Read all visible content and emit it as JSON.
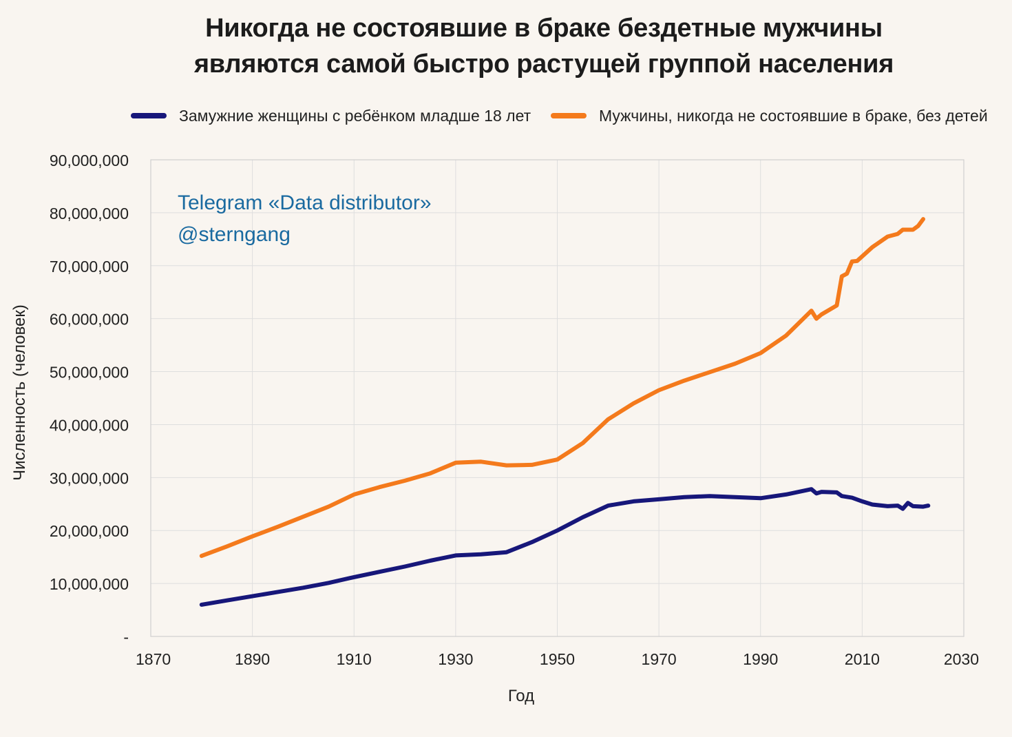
{
  "title_lines": [
    "Никогда не состоявшие в браке бездетные мужчины",
    "являются самой быстро растущей группой населения"
  ],
  "watermark": {
    "line1": "Telegram «Data distributor»",
    "line2": "@sterngang"
  },
  "colors": {
    "background": "#f9f5f0",
    "grid": "#dedede",
    "series_women": "#17177a",
    "series_men": "#f47a1c",
    "watermark": "#1a6aa0"
  },
  "chart_data": {
    "type": "line",
    "xlabel": "Год",
    "ylabel": "Численность (человек)",
    "xlim": [
      1870,
      2030
    ],
    "ylim": [
      0,
      90000000
    ],
    "x_ticks": [
      1870,
      1890,
      1910,
      1930,
      1950,
      1970,
      1990,
      2010,
      2030
    ],
    "y_ticks": [
      {
        "value": 0,
        "label": "-"
      },
      {
        "value": 10000000,
        "label": "10,000,000"
      },
      {
        "value": 20000000,
        "label": "20,000,000"
      },
      {
        "value": 30000000,
        "label": "30,000,000"
      },
      {
        "value": 40000000,
        "label": "40,000,000"
      },
      {
        "value": 50000000,
        "label": "50,000,000"
      },
      {
        "value": 60000000,
        "label": "60,000,000"
      },
      {
        "value": 70000000,
        "label": "70,000,000"
      },
      {
        "value": 80000000,
        "label": "80,000,000"
      },
      {
        "value": 90000000,
        "label": "90,000,000"
      }
    ],
    "grid": true,
    "legend_position": "top",
    "series": [
      {
        "name": "Замужние женщины с ребёнком младше 18 лет",
        "color": "#17177a",
        "points": [
          [
            1880,
            6000000
          ],
          [
            1885,
            6800000
          ],
          [
            1890,
            7600000
          ],
          [
            1895,
            8400000
          ],
          [
            1900,
            9200000
          ],
          [
            1905,
            10100000
          ],
          [
            1910,
            11200000
          ],
          [
            1915,
            12200000
          ],
          [
            1920,
            13200000
          ],
          [
            1925,
            14300000
          ],
          [
            1930,
            15300000
          ],
          [
            1935,
            15500000
          ],
          [
            1940,
            15900000
          ],
          [
            1945,
            17800000
          ],
          [
            1950,
            20000000
          ],
          [
            1955,
            22500000
          ],
          [
            1960,
            24700000
          ],
          [
            1965,
            25500000
          ],
          [
            1970,
            25900000
          ],
          [
            1975,
            26300000
          ],
          [
            1980,
            26500000
          ],
          [
            1985,
            26300000
          ],
          [
            1990,
            26100000
          ],
          [
            1995,
            26800000
          ],
          [
            2000,
            27800000
          ],
          [
            2001,
            27000000
          ],
          [
            2002,
            27300000
          ],
          [
            2005,
            27200000
          ],
          [
            2006,
            26500000
          ],
          [
            2008,
            26200000
          ],
          [
            2010,
            25500000
          ],
          [
            2012,
            24900000
          ],
          [
            2015,
            24600000
          ],
          [
            2017,
            24700000
          ],
          [
            2018,
            24100000
          ],
          [
            2019,
            25200000
          ],
          [
            2020,
            24600000
          ],
          [
            2022,
            24500000
          ],
          [
            2023,
            24700000
          ]
        ]
      },
      {
        "name": "Мужчины, никогда не состоявшие в браке, без детей",
        "color": "#f47a1c",
        "points": [
          [
            1880,
            15200000
          ],
          [
            1885,
            17000000
          ],
          [
            1890,
            18900000
          ],
          [
            1895,
            20700000
          ],
          [
            1900,
            22600000
          ],
          [
            1905,
            24500000
          ],
          [
            1910,
            26800000
          ],
          [
            1915,
            28200000
          ],
          [
            1920,
            29400000
          ],
          [
            1925,
            30800000
          ],
          [
            1930,
            32800000
          ],
          [
            1935,
            33000000
          ],
          [
            1940,
            32300000
          ],
          [
            1945,
            32400000
          ],
          [
            1950,
            33400000
          ],
          [
            1955,
            36500000
          ],
          [
            1960,
            41000000
          ],
          [
            1965,
            44000000
          ],
          [
            1970,
            46500000
          ],
          [
            1975,
            48300000
          ],
          [
            1980,
            49900000
          ],
          [
            1985,
            51500000
          ],
          [
            1990,
            53500000
          ],
          [
            1995,
            56800000
          ],
          [
            2000,
            61500000
          ],
          [
            2001,
            60000000
          ],
          [
            2002,
            60800000
          ],
          [
            2005,
            62500000
          ],
          [
            2006,
            68000000
          ],
          [
            2007,
            68500000
          ],
          [
            2008,
            70800000
          ],
          [
            2009,
            70900000
          ],
          [
            2012,
            73500000
          ],
          [
            2015,
            75500000
          ],
          [
            2017,
            76000000
          ],
          [
            2018,
            76800000
          ],
          [
            2020,
            76800000
          ],
          [
            2021,
            77500000
          ],
          [
            2022,
            78800000
          ]
        ]
      }
    ]
  }
}
